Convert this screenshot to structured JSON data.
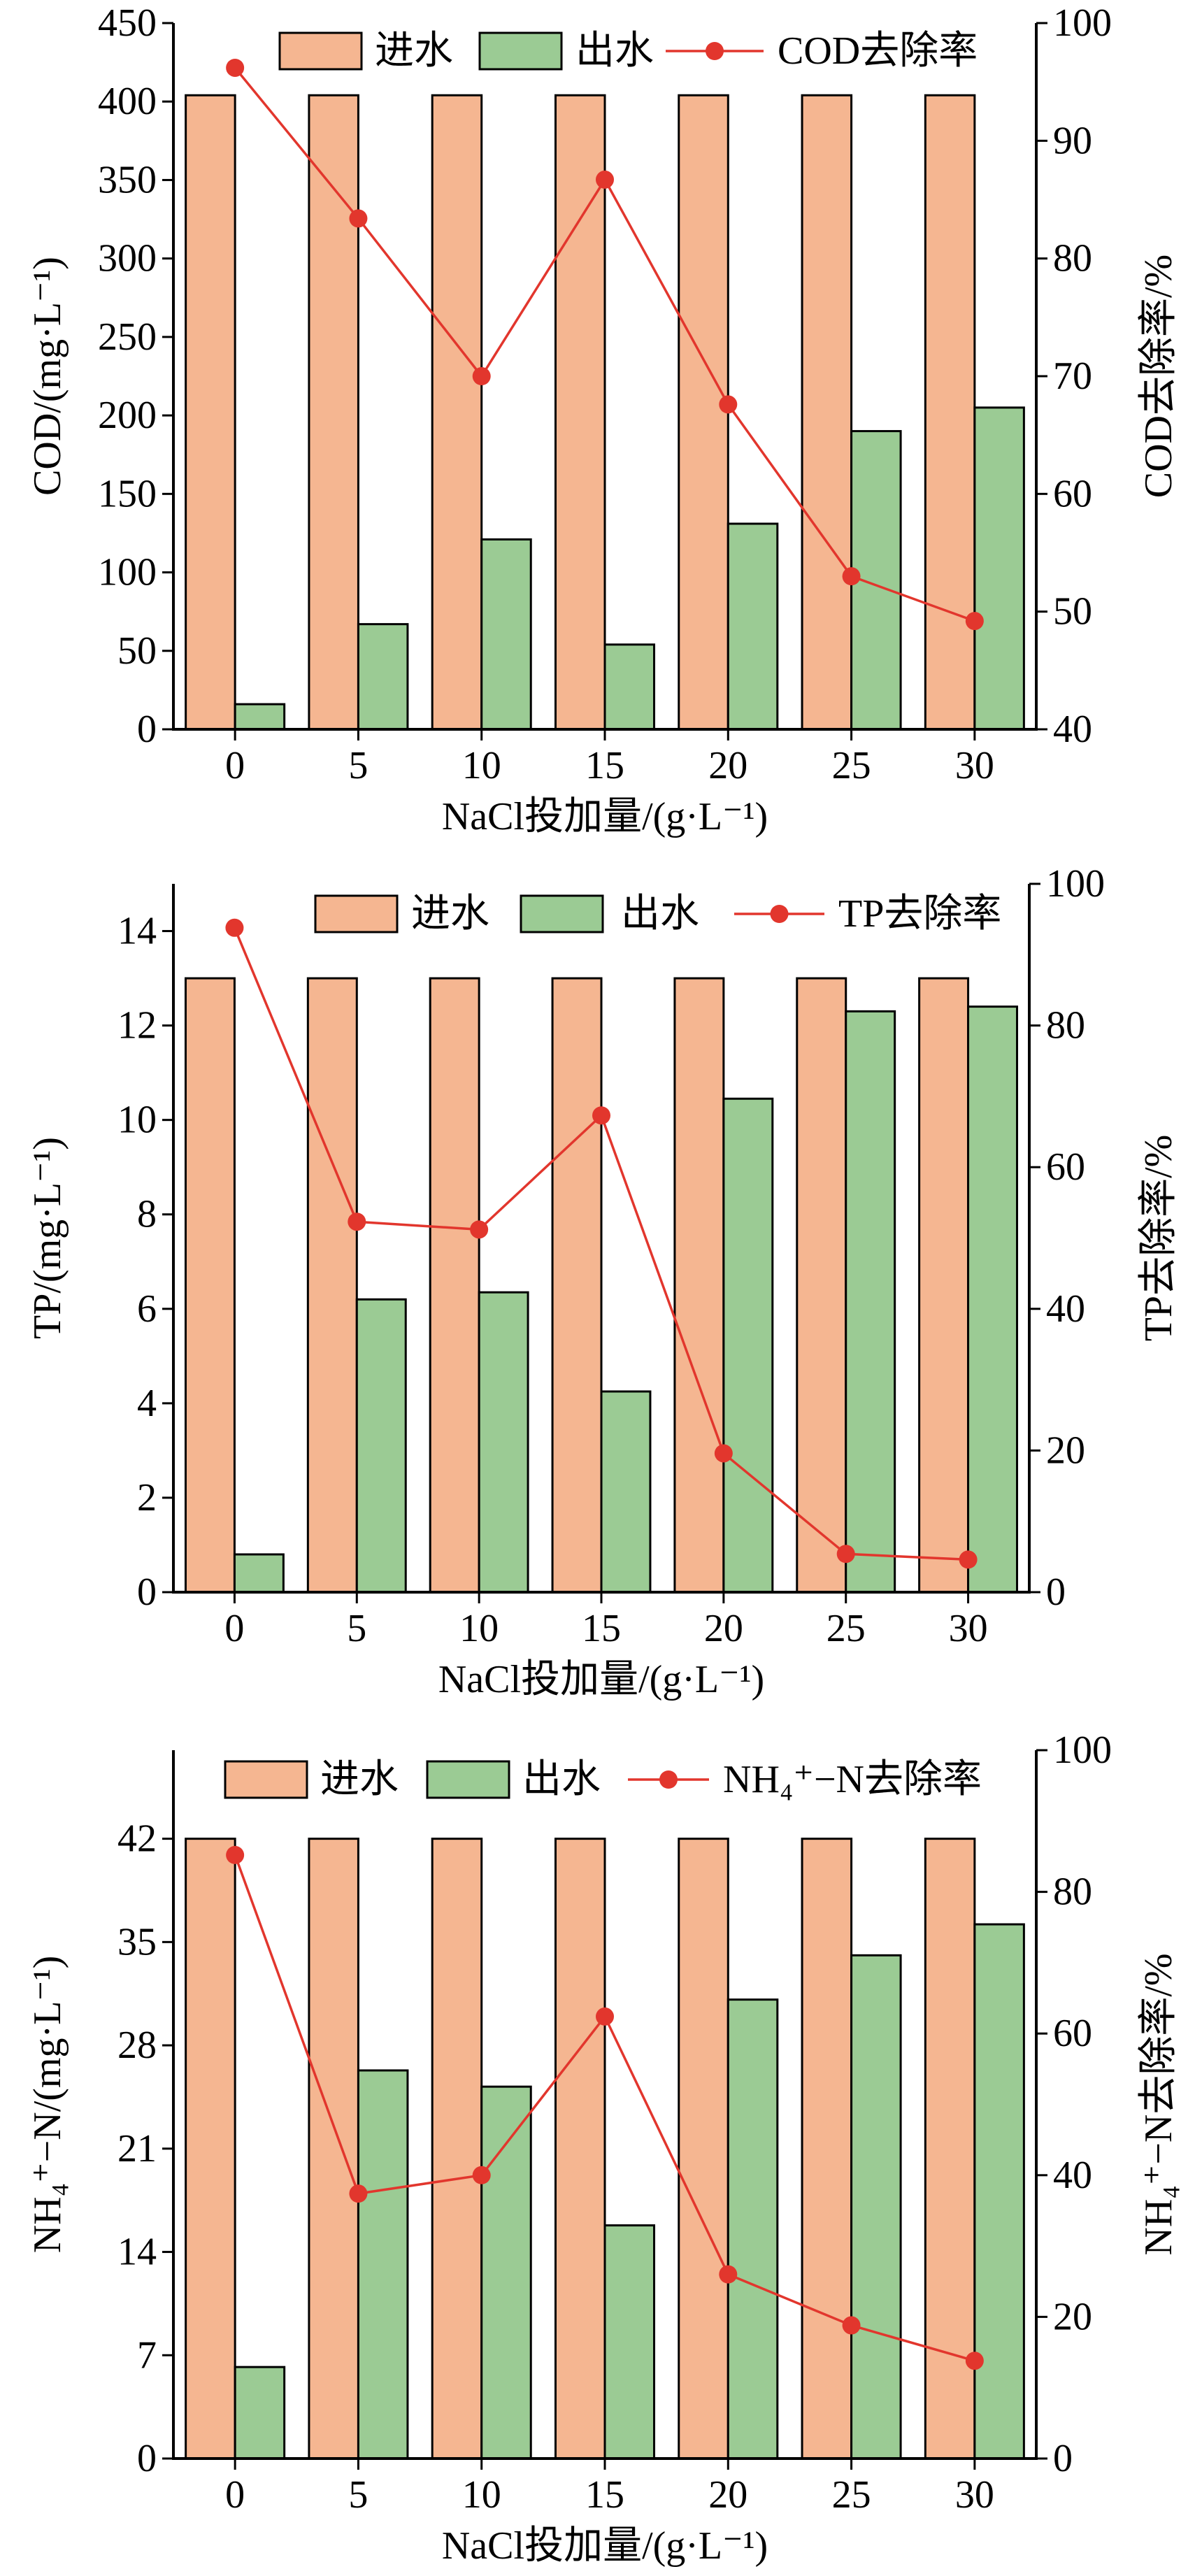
{
  "chart_data": [
    {
      "type": "bar",
      "categories": [
        "0",
        "5",
        "10",
        "15",
        "20",
        "25",
        "30"
      ],
      "xlabel": "NaCl投加量/(g·L⁻¹)",
      "ylabel": "COD/(mg·L⁻¹)",
      "ylabel_right": "COD去除率/%",
      "ylim": [
        0,
        450
      ],
      "yticks": [
        0,
        50,
        100,
        150,
        200,
        250,
        300,
        350,
        400,
        450
      ],
      "ylim_right": [
        40,
        100
      ],
      "yticks_right": [
        40,
        50,
        60,
        70,
        80,
        90,
        100
      ],
      "grid": false,
      "legend": "top",
      "series": [
        {
          "name": "进水",
          "type": "bar",
          "y_axis": "left",
          "color": "#F5B691",
          "values": [
            404,
            404,
            404,
            404,
            404,
            404,
            404
          ]
        },
        {
          "name": "出水",
          "type": "bar",
          "y_axis": "left",
          "color": "#9BCB94",
          "values": [
            16,
            67,
            121,
            54,
            131,
            190,
            205
          ]
        },
        {
          "name": "COD去除率",
          "type": "line",
          "y_axis": "right",
          "color": "#E2362D",
          "values": [
            96.2,
            83.4,
            70.0,
            86.7,
            67.6,
            53.0,
            49.2
          ]
        }
      ]
    },
    {
      "type": "bar",
      "categories": [
        "0",
        "5",
        "10",
        "15",
        "20",
        "25",
        "30"
      ],
      "xlabel": "NaCl投加量/(g·L⁻¹)",
      "ylabel": "TP/(mg·L⁻¹)",
      "ylabel_right": "TP去除率/%",
      "ylim": [
        0,
        15
      ],
      "yticks": [
        0,
        2,
        4,
        6,
        8,
        10,
        12,
        14
      ],
      "ylim_right": [
        0,
        100
      ],
      "yticks_right": [
        0,
        20,
        40,
        60,
        80,
        100
      ],
      "grid": false,
      "legend": "top",
      "series": [
        {
          "name": "进水",
          "type": "bar",
          "y_axis": "left",
          "color": "#F5B691",
          "values": [
            13.0,
            13.0,
            13.0,
            13.0,
            13.0,
            13.0,
            13.0
          ]
        },
        {
          "name": "出水",
          "type": "bar",
          "y_axis": "left",
          "color": "#9BCB94",
          "values": [
            0.8,
            6.2,
            6.35,
            4.25,
            10.45,
            12.3,
            12.4
          ]
        },
        {
          "name": "TP去除率",
          "type": "line",
          "y_axis": "right",
          "color": "#E2362D",
          "values": [
            93.8,
            52.3,
            51.2,
            67.3,
            19.6,
            5.4,
            4.6
          ]
        }
      ]
    },
    {
      "type": "bar",
      "categories": [
        "0",
        "5",
        "10",
        "15",
        "20",
        "25",
        "30"
      ],
      "xlabel": "NaCl投加量/(g·L⁻¹)",
      "ylabel": "NH₄⁺−N/(mg·L⁻¹)",
      "ylabel_right": "NH₄⁺−N去除率/%",
      "ylim": [
        0,
        48
      ],
      "yticks": [
        0,
        7,
        14,
        21,
        28,
        35,
        42
      ],
      "ylim_right": [
        0,
        100
      ],
      "yticks_right": [
        0,
        20,
        40,
        60,
        80,
        100
      ],
      "grid": false,
      "legend": "top",
      "series": [
        {
          "name": "进水",
          "type": "bar",
          "y_axis": "left",
          "color": "#F5B691",
          "values": [
            42,
            42,
            42,
            42,
            42,
            42,
            42
          ]
        },
        {
          "name": "出水",
          "type": "bar",
          "y_axis": "left",
          "color": "#9BCB94",
          "values": [
            6.2,
            26.3,
            25.2,
            15.8,
            31.1,
            34.1,
            36.2
          ]
        },
        {
          "name": "NH₄⁺−N去除率",
          "type": "line",
          "y_axis": "right",
          "color": "#E2362D",
          "values": [
            85.2,
            37.4,
            40.0,
            62.4,
            26.0,
            18.8,
            13.8
          ]
        }
      ]
    }
  ]
}
